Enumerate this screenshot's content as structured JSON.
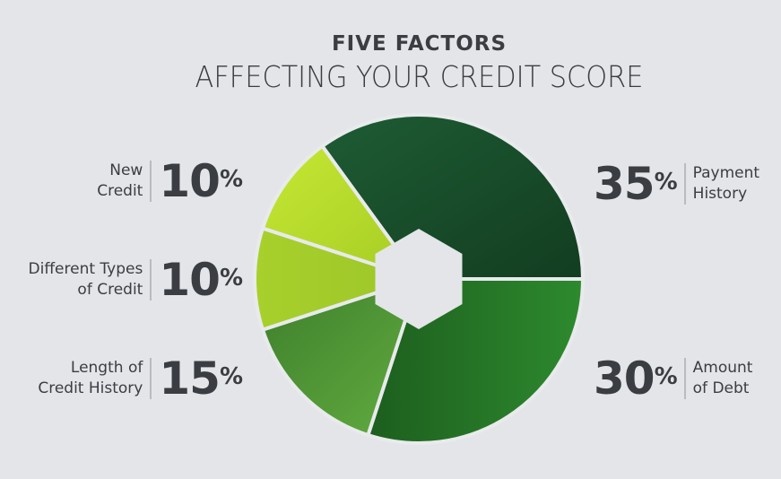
{
  "title": "FIVE FACTORS",
  "subtitle": "AFFECTING YOUR CREDIT SCORE",
  "chart_data": {
    "type": "pie",
    "title": "FIVE FACTORS AFFECTING YOUR CREDIT SCORE",
    "unit": "%",
    "slices": [
      {
        "label_lines": [
          "Payment",
          "History"
        ],
        "value": 35,
        "display": "35",
        "color": "#1c5530"
      },
      {
        "label_lines": [
          "Amount",
          "of Debt"
        ],
        "value": 30,
        "display": "30",
        "color": "#267a28"
      },
      {
        "label_lines": [
          "Length of",
          "Credit History"
        ],
        "value": 15,
        "display": "15",
        "color": "#58a23a"
      },
      {
        "label_lines": [
          "Different Types",
          "of Credit"
        ],
        "value": 10,
        "display": "10",
        "color": "#a2cc28"
      },
      {
        "label_lines": [
          "New",
          "Credit"
        ],
        "value": 10,
        "display": "10",
        "color": "#bde030"
      }
    ],
    "center_shape": "hexagon"
  }
}
